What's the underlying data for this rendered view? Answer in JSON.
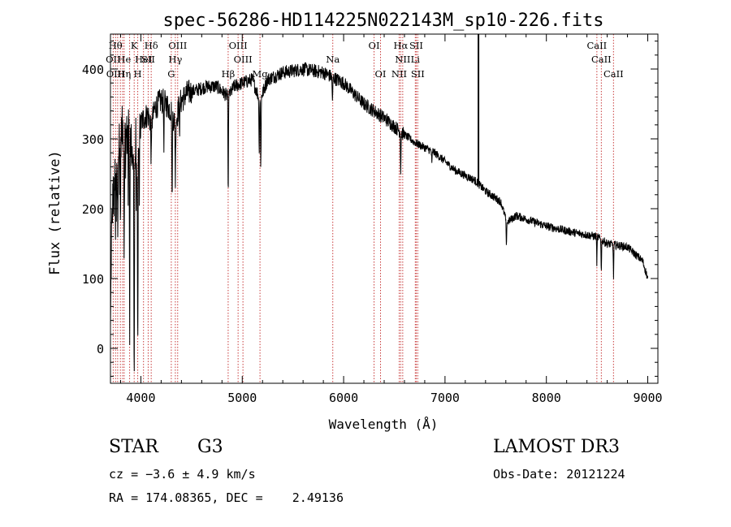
{
  "chart_data": {
    "type": "line",
    "title": "spec-56286-HD114225N022143M_sp10-226.fits",
    "xlabel": "Wavelength (Å)",
    "ylabel": "Flux (relative)",
    "xlim": [
      3700,
      9100
    ],
    "ylim": [
      -50,
      450
    ],
    "xticks": [
      4000,
      5000,
      6000,
      7000,
      8000,
      9000
    ],
    "xtick_labels": [
      "4000",
      "5000",
      "6000",
      "7000",
      "8000",
      "9000"
    ],
    "yticks": [
      0,
      100,
      200,
      300,
      400
    ],
    "ytick_labels": [
      "0",
      "100",
      "200",
      "300",
      "400"
    ],
    "spectrum_anchors": {
      "wavelength": [
        3700,
        3710,
        3730,
        3760,
        3790,
        3820,
        3850,
        3880,
        3920,
        3934,
        3950,
        3969,
        3990,
        4030,
        4070,
        4102,
        4140,
        4200,
        4250,
        4300,
        4340,
        4380,
        4450,
        4550,
        4650,
        4750,
        4861,
        4920,
        5000,
        5100,
        5175,
        5250,
        5400,
        5600,
        5800,
        6000,
        6200,
        6400,
        6563,
        6700,
        6900,
        7100,
        7300,
        7400,
        7550,
        7610,
        7700,
        8000,
        8300,
        8500,
        8600,
        8800,
        8950,
        9000
      ],
      "flux": [
        20,
        160,
        240,
        270,
        300,
        315,
        300,
        310,
        280,
        230,
        300,
        230,
        320,
        330,
        335,
        320,
        345,
        355,
        350,
        340,
        320,
        350,
        365,
        370,
        375,
        375,
        360,
        375,
        380,
        385,
        355,
        385,
        395,
        400,
        395,
        380,
        350,
        330,
        310,
        295,
        280,
        255,
        240,
        225,
        210,
        180,
        190,
        175,
        165,
        160,
        150,
        145,
        125,
        100
      ]
    },
    "absorption_dips": {
      "wavelength": [
        3734,
        3750,
        3771,
        3798,
        3835,
        3889,
        3934,
        3969,
        4102,
        4227,
        4308,
        4340,
        4383,
        4861,
        5167,
        5183,
        5890,
        6563,
        6870,
        7605,
        8498,
        8542,
        8662
      ],
      "depth": [
        60,
        100,
        120,
        130,
        160,
        220,
        320,
        300,
        60,
        60,
        140,
        80,
        40,
        160,
        80,
        100,
        40,
        60,
        20,
        40,
        40,
        50,
        50
      ]
    },
    "emission_spike": {
      "wavelength": 7330,
      "peak_flux": 470
    },
    "line_markers": {
      "wavelength": [
        3727,
        3750,
        3771,
        3798,
        3820,
        3835,
        3889,
        3934,
        3969,
        4026,
        4072,
        4102,
        4300,
        4340,
        4363,
        4861,
        4959,
        5007,
        5175,
        5893,
        6300,
        6364,
        6548,
        6563,
        6583,
        6707,
        6716,
        6731,
        8498,
        8542,
        8662
      ],
      "color": "#c83c3c"
    },
    "line_labels": [
      {
        "text": "Hθ",
        "wavelength": 3750,
        "row": 1
      },
      {
        "text": "K",
        "wavelength": 3934,
        "row": 1
      },
      {
        "text": "Hδ",
        "wavelength": 4102,
        "row": 1
      },
      {
        "text": "OIII",
        "wavelength": 4363,
        "row": 1
      },
      {
        "text": "OIII",
        "wavelength": 4959,
        "row": 1
      },
      {
        "text": "OI",
        "wavelength": 6300,
        "row": 1
      },
      {
        "text": "Hα",
        "wavelength": 6563,
        "row": 1
      },
      {
        "text": "SII",
        "wavelength": 6716,
        "row": 1
      },
      {
        "text": "CaII",
        "wavelength": 8498,
        "row": 1
      },
      {
        "text": "OII",
        "wavelength": 3727,
        "row": 2
      },
      {
        "text": "He",
        "wavelength": 3835,
        "row": 2
      },
      {
        "text": "HeI",
        "wavelength": 4026,
        "row": 2
      },
      {
        "text": "SII",
        "wavelength": 4072,
        "row": 2
      },
      {
        "text": "Hγ",
        "wavelength": 4340,
        "row": 2
      },
      {
        "text": "OIII",
        "wavelength": 5007,
        "row": 2
      },
      {
        "text": "Na",
        "wavelength": 5893,
        "row": 2
      },
      {
        "text": "NII",
        "wavelength": 6583,
        "row": 2
      },
      {
        "text": "Li",
        "wavelength": 6707,
        "row": 2
      },
      {
        "text": "CaII",
        "wavelength": 8542,
        "row": 2
      },
      {
        "text": "OIII",
        "wavelength": 3750,
        "row": 3
      },
      {
        "text": "Hη",
        "wavelength": 3835,
        "row": 3
      },
      {
        "text": "H",
        "wavelength": 3969,
        "row": 3
      },
      {
        "text": "G",
        "wavelength": 4300,
        "row": 3
      },
      {
        "text": "Hβ",
        "wavelength": 4861,
        "row": 3
      },
      {
        "text": "Mg",
        "wavelength": 5175,
        "row": 3
      },
      {
        "text": "OI",
        "wavelength": 6364,
        "row": 3
      },
      {
        "text": "NII",
        "wavelength": 6548,
        "row": 3
      },
      {
        "text": "SII",
        "wavelength": 6731,
        "row": 3
      },
      {
        "text": "CaII",
        "wavelength": 8662,
        "row": 3
      }
    ]
  },
  "info": {
    "object_class": "STAR",
    "subclass": "G3",
    "survey": "LAMOST DR3",
    "redshift": "cz = −3.6 ± 4.9 km/s",
    "obs_date": "Obs-Date: 20121224",
    "coords": "RA = 174.08365, DEC =    2.49136"
  }
}
